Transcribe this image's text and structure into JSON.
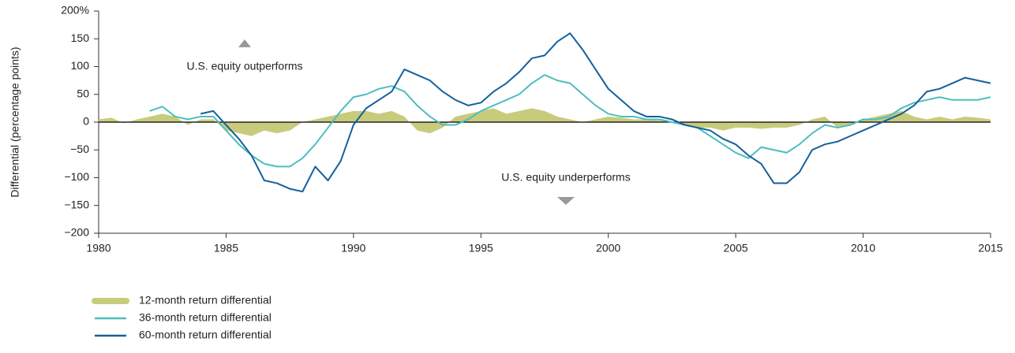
{
  "chart_data": {
    "type": "line",
    "y_label": "Differential (percentage points)",
    "annotations": [
      "U.S. equity outperforms",
      "U.S. equity underperforms"
    ],
    "xlim": [
      1980,
      2015
    ],
    "xticks": [
      1980,
      1985,
      1990,
      1995,
      2000,
      2005,
      2010,
      2015
    ],
    "ylim": [
      -200,
      200
    ],
    "yticks": [
      {
        "value": 200,
        "label": "200%"
      },
      150,
      100,
      50,
      0,
      {
        "value": -50,
        "label": "−50"
      },
      {
        "value": -100,
        "label": "−100"
      },
      {
        "value": -150,
        "label": "−150"
      },
      {
        "value": -200,
        "label": "−200"
      }
    ],
    "x": [
      1980,
      1980.5,
      1981,
      1981.5,
      1982,
      1982.5,
      1983,
      1983.5,
      1984,
      1984.5,
      1985,
      1985.5,
      1986,
      1986.5,
      1987,
      1987.5,
      1988,
      1988.5,
      1989,
      1989.5,
      1990,
      1990.5,
      1991,
      1991.5,
      1992,
      1992.5,
      1993,
      1993.5,
      1994,
      1994.5,
      1995,
      1995.5,
      1996,
      1996.5,
      1997,
      1997.5,
      1998,
      1998.5,
      1999,
      1999.5,
      2000,
      2000.5,
      2001,
      2001.5,
      2002,
      2002.5,
      2003,
      2003.5,
      2004,
      2004.5,
      2005,
      2005.5,
      2006,
      2006.5,
      2007,
      2007.5,
      2008,
      2008.5,
      2009,
      2009.5,
      2010,
      2010.5,
      2011,
      2011.5,
      2012,
      2012.5,
      2013,
      2013.5,
      2014,
      2014.5,
      2015
    ],
    "series": [
      {
        "name": "12-month return differential",
        "type": "area",
        "color": "#c8cb7c",
        "values": [
          5,
          8,
          -2,
          5,
          10,
          15,
          10,
          -5,
          5,
          5,
          -15,
          -20,
          -25,
          -15,
          -20,
          -15,
          0,
          5,
          10,
          15,
          20,
          20,
          15,
          20,
          10,
          -15,
          -20,
          -10,
          10,
          15,
          20,
          25,
          15,
          20,
          25,
          20,
          10,
          5,
          0,
          5,
          10,
          8,
          5,
          5,
          3,
          0,
          -5,
          -10,
          -10,
          -15,
          -10,
          -10,
          -12,
          -10,
          -10,
          -5,
          5,
          10,
          -10,
          -5,
          5,
          10,
          15,
          20,
          10,
          5,
          10,
          5,
          10,
          8,
          5
        ]
      },
      {
        "name": "36-month return differential",
        "type": "line",
        "color": "#4dbdc0",
        "values": [
          null,
          null,
          null,
          null,
          20,
          28,
          10,
          5,
          10,
          10,
          -15,
          -40,
          -60,
          -75,
          -80,
          -80,
          -65,
          -40,
          -10,
          20,
          45,
          50,
          60,
          65,
          55,
          30,
          10,
          -5,
          -5,
          5,
          20,
          30,
          40,
          50,
          70,
          85,
          75,
          70,
          50,
          30,
          15,
          10,
          10,
          5,
          5,
          0,
          -5,
          -10,
          -25,
          -40,
          -55,
          -65,
          -45,
          -50,
          -55,
          -40,
          -20,
          -5,
          -10,
          -5,
          5,
          5,
          10,
          25,
          35,
          40,
          45,
          40,
          40,
          40,
          45
        ]
      },
      {
        "name": "60-month return differential",
        "type": "line",
        "color": "#15609c",
        "values": [
          null,
          null,
          null,
          null,
          null,
          null,
          null,
          null,
          15,
          20,
          -5,
          -30,
          -60,
          -105,
          -110,
          -120,
          -125,
          -80,
          -105,
          -70,
          -5,
          25,
          40,
          55,
          95,
          85,
          75,
          55,
          40,
          30,
          35,
          55,
          70,
          90,
          115,
          120,
          145,
          160,
          130,
          95,
          60,
          40,
          20,
          10,
          10,
          5,
          -5,
          -10,
          -15,
          -30,
          -40,
          -60,
          -75,
          -110,
          -110,
          -90,
          -50,
          -40,
          -35,
          -25,
          -15,
          -5,
          5,
          15,
          30,
          55,
          60,
          70,
          80,
          75,
          70
        ]
      }
    ]
  }
}
